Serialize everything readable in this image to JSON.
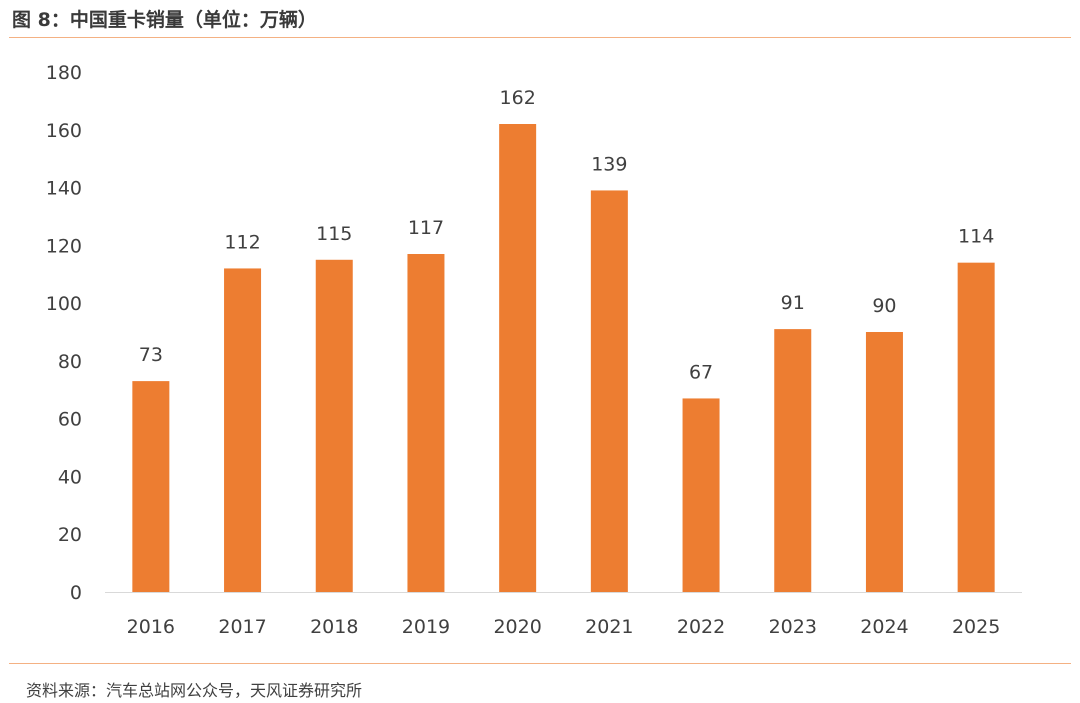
{
  "title": "图 8：中国重卡销量（单位：万辆）",
  "source": "资料来源：汽车总站网公众号，天风证券研究所",
  "colors": {
    "bar": "#ed7d31",
    "rule": "#f4b183",
    "axis": "#d9d9d9"
  },
  "chart_data": {
    "type": "bar",
    "title": "图 8：中国重卡销量（单位：万辆）",
    "xlabel": "",
    "ylabel": "",
    "categories": [
      "2016",
      "2017",
      "2018",
      "2019",
      "2020",
      "2021",
      "2022",
      "2023",
      "2024",
      "2025"
    ],
    "values": [
      73,
      112,
      115,
      117,
      162,
      139,
      67,
      91,
      90,
      114
    ],
    "ylim": [
      0,
      180
    ],
    "yticks": [
      0,
      20,
      40,
      60,
      80,
      100,
      120,
      140,
      160,
      180
    ],
    "grid": false,
    "legend": "none",
    "data_labels": true
  }
}
